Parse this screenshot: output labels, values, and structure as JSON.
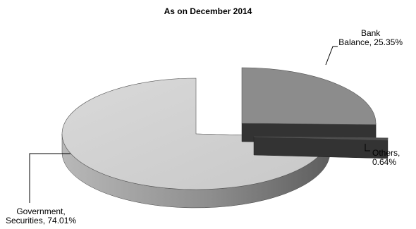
{
  "chart_data": {
    "type": "pie",
    "title": "As on December 2014",
    "slices": [
      {
        "name": "Bank Balance",
        "value": 25.35,
        "label_line1": "Bank",
        "label_line2": "Balance, 25.35%",
        "color": "#8c8c8c"
      },
      {
        "name": "Others",
        "value": 0.64,
        "label_line1": "Others,",
        "label_line2": "0.64%",
        "color": "#4d4d4d"
      },
      {
        "name": "Government, Securities",
        "value": 74.01,
        "label_line1": "Government,",
        "label_line2": "Securities, 74.01%",
        "color": "#d0d0d0"
      }
    ],
    "exploded": [
      "Bank Balance",
      "Others"
    ],
    "legend": "none",
    "style": "3d"
  }
}
